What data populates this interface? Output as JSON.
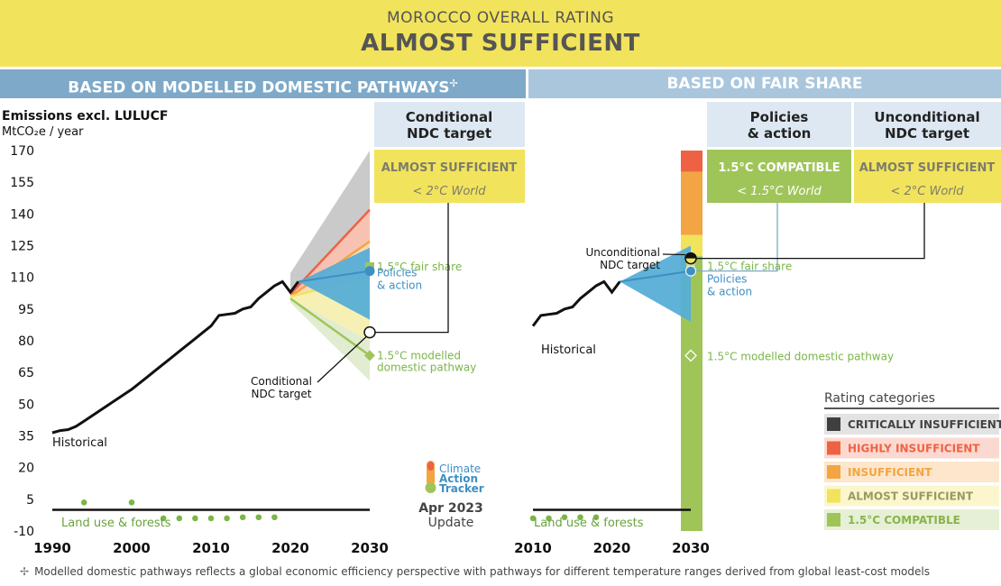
{
  "header": {
    "subtitle": "MOROCCO OVERALL RATING",
    "title": "ALMOST SUFFICIENT"
  },
  "sections": {
    "left": "BASED ON MODELLED DOMESTIC PATHWAYS",
    "left_mark": "✢",
    "right": "BASED ON FAIR SHARE"
  },
  "footnote": {
    "mark": "✢",
    "text": "Modelled domestic pathways reflects a global economic efficiency perspective with pathways for different temperature ranges derived from global least-cost models"
  },
  "boxes": {
    "conditional": {
      "title_line1": "Conditional",
      "title_line2": "NDC target",
      "rating": "ALMOST SUFFICIENT",
      "world": "< 2°C World"
    },
    "policies": {
      "title_line1": "Policies",
      "title_line2": "& action",
      "rating": "1.5°C COMPATIBLE",
      "world": "< 1.5°C World"
    },
    "unconditional": {
      "title_line1": "Unconditional",
      "title_line2": "NDC target",
      "rating": "ALMOST SUFFICIENT",
      "world": "< 2°C World"
    }
  },
  "legend": {
    "title": "Rating categories",
    "items": [
      {
        "label": "CRITICALLY INSUFFICIENT",
        "swatch": "#3f3f3f",
        "bg": "#e3e3e3",
        "text_color": "#444444"
      },
      {
        "label": "HIGHLY INSUFFICIENT",
        "swatch": "#ee6244",
        "bg": "#fcd9d0",
        "text_color": "#ee6244"
      },
      {
        "label": "INSUFFICIENT",
        "swatch": "#f2a542",
        "bg": "#fde6cb",
        "text_color": "#f2a542"
      },
      {
        "label": "ALMOST SUFFICIENT",
        "swatch": "#f2e35c",
        "bg": "#fbf6cd",
        "text_color": "#9a9a60"
      },
      {
        "label": "1.5°C COMPATIBLE",
        "swatch": "#9fc559",
        "bg": "#e6f0d6",
        "text_color": "#8ab34a"
      }
    ]
  },
  "logo": {
    "line1": "Climate",
    "line2": "Action",
    "line3": "Tracker",
    "date": "Apr 2023",
    "update": "Update"
  },
  "colors": {
    "historical": "#111111",
    "policies": "#3d8fc4",
    "policies_fill": "#57aed6",
    "fair_share": "#9fc559",
    "modelled": "#9fc559",
    "grey_band": "#bdbdbd",
    "red_line": "#ee6244",
    "orange_line": "#f2a542",
    "yellow_line": "#f2e35c",
    "banner": "#f2e35c"
  },
  "chart_data": [
    {
      "type": "line",
      "panel": "modelled domestic pathways",
      "ylabel_line1": "Emissions excl. LULUCF",
      "ylabel_line2": "MtCO₂e / year",
      "ylim": [
        -10,
        170
      ],
      "y_ticks": [
        170,
        155,
        140,
        125,
        110,
        95,
        80,
        65,
        50,
        35,
        20,
        5,
        -10
      ],
      "xlim": [
        1990,
        2030
      ],
      "x_ticks": [
        1990,
        2000,
        2010,
        2020,
        2030
      ],
      "historical": {
        "label": "Historical",
        "x": [
          1990,
          1991,
          1992,
          1993,
          1994,
          1995,
          1996,
          1997,
          1998,
          1999,
          2000,
          2001,
          2002,
          2003,
          2004,
          2005,
          2006,
          2007,
          2008,
          2009,
          2010,
          2011,
          2012,
          2013,
          2014,
          2015,
          2016,
          2017,
          2018,
          2019,
          2020,
          2021
        ],
        "y": [
          36.5,
          37.5,
          38,
          39.5,
          42,
          44.5,
          47,
          49.5,
          52,
          54.5,
          57,
          60,
          63,
          66,
          69,
          72,
          75,
          78,
          81,
          84,
          87,
          92,
          92.5,
          93,
          95,
          96,
          100,
          103,
          106,
          108,
          103,
          108
        ]
      },
      "policies_range": {
        "label_line1": "Policies",
        "label_line2": "& action",
        "x": [
          2021,
          2030
        ],
        "start": 108,
        "upper": 124,
        "lower": 90,
        "mid": 113
      },
      "fair_share": {
        "label": "1.5°C fair share",
        "x": 2030,
        "y": 115
      },
      "conditional_ndc": {
        "label_line1": "Conditional",
        "label_line2": "NDC target",
        "x": 2030,
        "y": 84
      },
      "modelled_pathway": {
        "label_line1": "1.5°C modelled",
        "label_line2": "domestic pathway",
        "x": 2030,
        "y": 73
      },
      "bands_2030": {
        "critically_insufficient_top": 170,
        "highly_insufficient_line": 142,
        "insufficient_line": 127,
        "almost_sufficient_line": 110
      },
      "land_use": {
        "label": "Land use & forests",
        "x": [
          1994,
          2000,
          2004,
          2006,
          2008,
          2010,
          2012,
          2014,
          2016,
          2018
        ],
        "y": [
          3.5,
          3.5,
          -4,
          -4,
          -4,
          -4,
          -4,
          -3.5,
          -3.5,
          -3.5
        ]
      }
    },
    {
      "type": "line",
      "panel": "fair share",
      "xlim": [
        2010,
        2030
      ],
      "x_ticks": [
        2010,
        2020,
        2030
      ],
      "historical": {
        "label": "Historical",
        "x": [
          2010,
          2011,
          2012,
          2013,
          2014,
          2015,
          2016,
          2017,
          2018,
          2019,
          2020,
          2021
        ],
        "y": [
          87,
          92,
          92.5,
          93,
          95,
          96,
          100,
          103,
          106,
          108,
          103,
          108
        ]
      },
      "policies_range": {
        "label_line1": "Policies",
        "label_line2": "& action",
        "x": [
          2021,
          2030
        ],
        "start": 108,
        "upper": 125,
        "lower": 89,
        "mid": 113
      },
      "unconditional_ndc": {
        "label_line1": "Unconditional",
        "label_line2": "NDC target",
        "x": 2030,
        "y": 119
      },
      "fair_share": {
        "label": "1.5°C fair share",
        "x": 2030,
        "y": 116
      },
      "modelled_pathway": {
        "label": "1.5°C modelled domestic pathway",
        "x": 2030,
        "y": 73
      },
      "fair_share_bar": [
        {
          "category": "HIGHLY INSUFFICIENT",
          "from": 160,
          "to": 170
        },
        {
          "category": "INSUFFICIENT",
          "from": 130,
          "to": 160
        },
        {
          "category": "ALMOST SUFFICIENT",
          "from": 120,
          "to": 130
        },
        {
          "category": "1.5°C COMPATIBLE",
          "from": -10,
          "to": 120
        }
      ],
      "land_use": {
        "label": "Land use & forests",
        "x": [
          2010,
          2012,
          2014,
          2016,
          2018
        ],
        "y": [
          -4,
          -4,
          -3.5,
          -3.5,
          -3.5
        ]
      }
    }
  ]
}
